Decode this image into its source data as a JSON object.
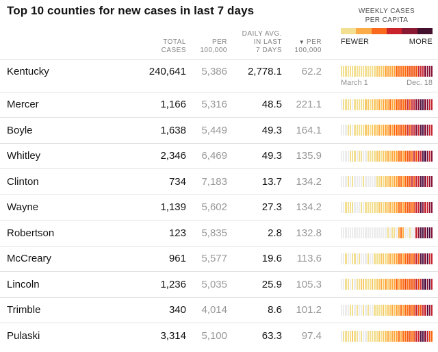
{
  "title": "Top 10 counties for new cases in last 7 days",
  "legend": {
    "title_line1": "WEEKLY CASES",
    "title_line2": "PER CAPITA",
    "fewer_label": "FEWER",
    "more_label": "MORE",
    "colors": [
      "#f2df91",
      "#fbac49",
      "#fa6a1e",
      "#c9232c",
      "#8a1a33",
      "#43102e"
    ]
  },
  "headers": {
    "total": [
      "TOTAL",
      "CASES"
    ],
    "per_capita": [
      "PER",
      "100,000"
    ],
    "daily_avg": [
      "DAILY AVG.",
      "IN LAST",
      "7 DAYS"
    ],
    "sort_arrow": "▼",
    "sorted_per_capita": [
      "PER",
      "100,000"
    ]
  },
  "timeline": {
    "start_label": "March 1",
    "end_label": "Dec. 18"
  },
  "palette": {
    "g": "#ececec",
    "b": "#f2df91",
    "c": "#f9c967",
    "d": "#ffa83e",
    "e": "#fd6a0b",
    "f": "#f04f09",
    "h": "#c62833",
    "i": "#8a1739",
    "j": "#4c0d3e"
  },
  "chart_data": {
    "type": "heatmap",
    "note": "Each row strip shows weekly cases per capita from March 1 to Dec. 18; letters map to palette colors, g = no/low data gray",
    "x_range": [
      "March 1",
      "Dec. 18"
    ],
    "legend_scale": [
      "FEWER",
      "MORE"
    ]
  },
  "rows": [
    {
      "name": "Kentucky",
      "total_cases": "240,641",
      "per_100k": "5,386",
      "daily_avg": "2,778.1",
      "daily_per_100k": "62.2",
      "strip": "bbbbbbbbbbbbbbbbccccdddddeeeeefffffhhhiiii"
    },
    {
      "name": "Mercer",
      "total_cases": "1,166",
      "per_100k": "5,316",
      "daily_avg": "48.5",
      "daily_per_100k": "221.1",
      "strip": "gbbbbgbbbbbccbcccdcdddeddeefefhfhhiijjiihh"
    },
    {
      "name": "Boyle",
      "total_cases": "1,638",
      "per_100k": "5,449",
      "daily_avg": "49.3",
      "daily_per_100k": "164.1",
      "strip": "gggbbgbbbbbccbcccdcdddedeeefefhfhhihjjiihh"
    },
    {
      "name": "Whitley",
      "total_cases": "2,346",
      "per_100k": "6,469",
      "daily_avg": "49.3",
      "daily_per_100k": "135.9",
      "strip": "ggggbbbgbbggbbbbccbccdcdddeedeffehfhhjjihi"
    },
    {
      "name": "Clinton",
      "total_cases": "734",
      "per_100k": "7,183",
      "daily_avg": "13.7",
      "daily_per_100k": "134.2",
      "strip": "gggbgbggggbgggggbbcbccdcddeedeffhfhhjjihii"
    },
    {
      "name": "Wayne",
      "total_cases": "1,139",
      "per_100k": "5,602",
      "daily_avg": "27.3",
      "daily_per_100k": "134.2",
      "strip": "ggbbbbgggbgbbbbbbccbccdcddeedeffefhhjihhii"
    },
    {
      "name": "Robertson",
      "total_cases": "123",
      "per_100k": "5,835",
      "daily_avg": "2.8",
      "daily_per_100k": "132.8",
      "strip": "gggggggggggggggggggggbgbbgdedggbgghijjijji"
    },
    {
      "name": "McCreary",
      "total_cases": "961",
      "per_100k": "5,577",
      "daily_avg": "19.6",
      "daily_per_100k": "113.6",
      "strip": "ggbggbbgbgggbggbbbccbcdcddeedeffefhfjjijhh"
    },
    {
      "name": "Lincoln",
      "total_cases": "1,236",
      "per_100k": "5,035",
      "daily_avg": "25.9",
      "daily_per_100k": "105.3",
      "strip": "ggbbgbgbbccbbbcbccdcdcdddedeefefffhfhjjijh"
    },
    {
      "name": "Trimble",
      "total_cases": "340",
      "per_100k": "4,014",
      "daily_avg": "8.6",
      "daily_per_100k": "101.2",
      "strip": "ggggbbgbggbgbggbbbbcbccdcddedeefefhffhhjih"
    },
    {
      "name": "Pulaski",
      "total_cases": "3,314",
      "per_100k": "5,100",
      "daily_avg": "63.3",
      "daily_per_100k": "97.4",
      "strip": "gbbbbcbbgbggbbbbbcbccdcdddedeeffefhhjjihfe"
    }
  ]
}
